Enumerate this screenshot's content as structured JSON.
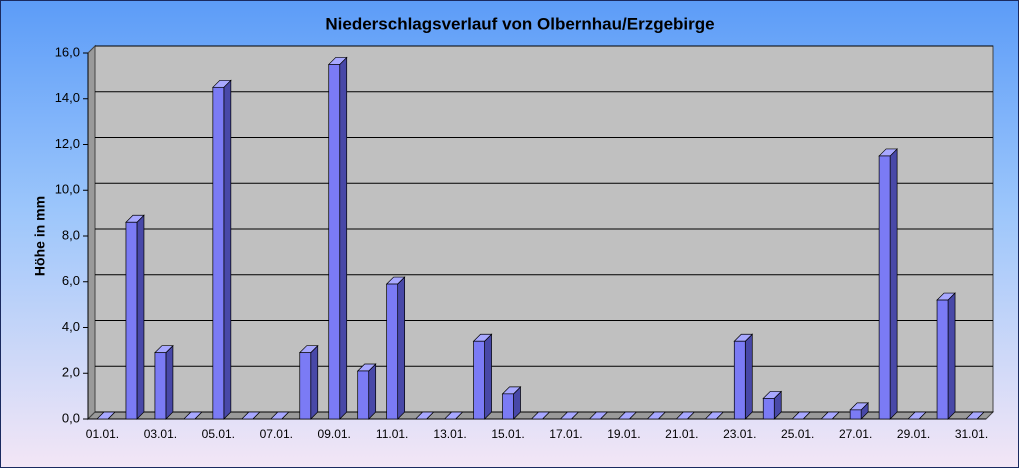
{
  "chart_data": {
    "type": "bar",
    "title": "Niederschlagsverlauf von Olbernhau/Erzgebirge",
    "y_label": "Höhe in  mm",
    "categories": [
      "01.01.",
      null,
      "03.01.",
      null,
      "05.01.",
      null,
      "07.01.",
      null,
      "09.01.",
      null,
      "11.01.",
      null,
      "13.01.",
      null,
      "15.01.",
      null,
      "17.01.",
      null,
      "19.01.",
      null,
      "21.01.",
      null,
      "23.01.",
      null,
      "25.01.",
      null,
      "27.01.",
      null,
      "29.01.",
      null,
      "31.01."
    ],
    "values": [
      0,
      8.6,
      2.9,
      0,
      14.5,
      0,
      0,
      2.9,
      15.5,
      2.1,
      5.9,
      0,
      0,
      3.4,
      1.1,
      0,
      0,
      0,
      0,
      0,
      0,
      0,
      3.4,
      0.9,
      0,
      0,
      0.4,
      11.5,
      0,
      5.2,
      0
    ],
    "color": "#7b7bf5",
    "ylim": [
      0,
      16
    ],
    "yticks": [
      {
        "value": 0,
        "label": "0,0"
      },
      {
        "value": 2,
        "label": "2,0"
      },
      {
        "value": 4,
        "label": "4,0"
      },
      {
        "value": 6,
        "label": "6,0"
      },
      {
        "value": 8,
        "label": "8,0"
      },
      {
        "value": 10,
        "label": "10,0"
      },
      {
        "value": 12,
        "label": "12,0"
      },
      {
        "value": 14,
        "label": "14,0"
      },
      {
        "value": 16,
        "label": "16,0"
      }
    ],
    "grid": true
  }
}
